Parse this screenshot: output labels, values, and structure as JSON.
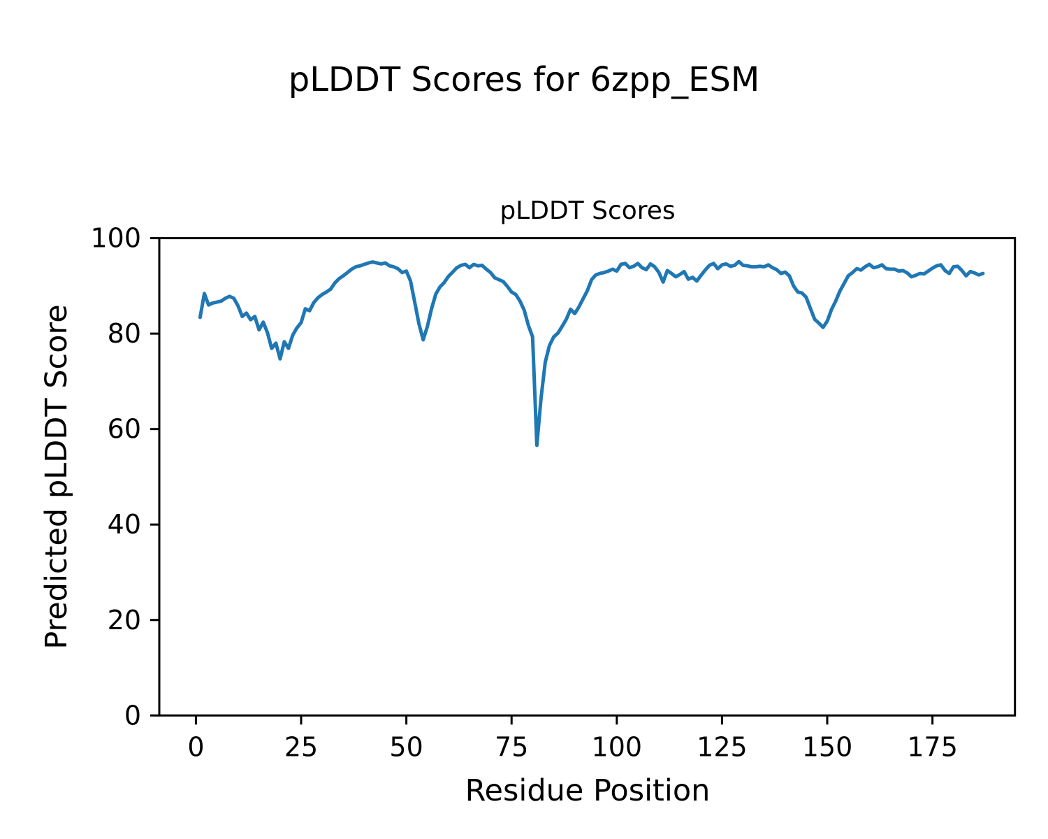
{
  "chart_data": {
    "type": "line",
    "suptitle": "pLDDT Scores for 6zpp_ESM",
    "title": "pLDDT Scores",
    "xlabel": "Residue Position",
    "ylabel": "Predicted pLDDT Score",
    "x_ticks": [
      0,
      25,
      50,
      75,
      100,
      125,
      150,
      175
    ],
    "y_ticks": [
      0,
      20,
      40,
      60,
      80,
      100
    ],
    "xlim": [
      -8.7,
      194.6
    ],
    "ylim": [
      0,
      100
    ],
    "grid": false,
    "legend": "none",
    "line_color": "#1f77b4",
    "axis_color": "#000000",
    "series": [
      {
        "name": "pLDDT",
        "x_start": 1,
        "x_step": 1,
        "values": [
          83.4,
          88.4,
          86.0,
          86.4,
          86.6,
          86.8,
          87.4,
          87.8,
          87.4,
          85.8,
          83.6,
          84.3,
          82.9,
          83.6,
          80.8,
          82.4,
          80.2,
          76.9,
          78.0,
          74.7,
          78.3,
          76.9,
          79.7,
          81.2,
          82.3,
          85.2,
          84.8,
          86.5,
          87.5,
          88.2,
          88.7,
          89.3,
          90.6,
          91.5,
          92.1,
          92.8,
          93.5,
          94.0,
          94.2,
          94.5,
          94.8,
          95.0,
          94.8,
          94.6,
          94.8,
          94.2,
          94.0,
          93.6,
          92.8,
          93.1,
          91.0,
          86.5,
          82.0,
          78.7,
          81.5,
          85.3,
          88.3,
          89.8,
          90.7,
          92.0,
          92.9,
          93.8,
          94.3,
          94.5,
          93.8,
          94.5,
          94.2,
          94.3,
          93.5,
          92.8,
          91.7,
          91.3,
          90.9,
          89.9,
          88.7,
          88.2,
          86.8,
          84.9,
          81.7,
          79.3,
          56.6,
          66.5,
          74.0,
          77.5,
          79.3,
          80.1,
          81.5,
          83.0,
          85.1,
          84.2,
          85.6,
          87.3,
          89.0,
          91.3,
          92.3,
          92.6,
          92.8,
          93.1,
          93.5,
          93.1,
          94.5,
          94.7,
          93.8,
          94.1,
          94.7,
          93.8,
          93.4,
          94.6,
          94.0,
          92.8,
          90.8,
          93.2,
          92.6,
          91.9,
          92.4,
          93.0,
          91.4,
          91.8,
          91.0,
          92.2,
          93.3,
          94.3,
          94.7,
          93.6,
          94.4,
          94.6,
          94.1,
          94.3,
          95.1,
          94.3,
          94.2,
          94.0,
          94.0,
          94.1,
          94.0,
          94.4,
          93.8,
          93.4,
          92.6,
          92.9,
          92.1,
          90.0,
          88.7,
          88.5,
          87.6,
          85.3,
          83.0,
          82.2,
          81.3,
          82.6,
          85.0,
          86.8,
          88.9,
          90.5,
          92.1,
          92.8,
          93.6,
          93.3,
          94.0,
          94.5,
          93.8,
          94.0,
          94.4,
          93.6,
          93.5,
          93.5,
          93.1,
          93.2,
          92.7,
          91.9,
          92.2,
          92.6,
          92.5,
          93.1,
          93.7,
          94.2,
          94.4,
          93.2,
          92.6,
          94.0,
          94.1,
          93.2,
          92.1,
          93.0,
          92.7,
          92.3,
          92.6
        ]
      }
    ]
  }
}
